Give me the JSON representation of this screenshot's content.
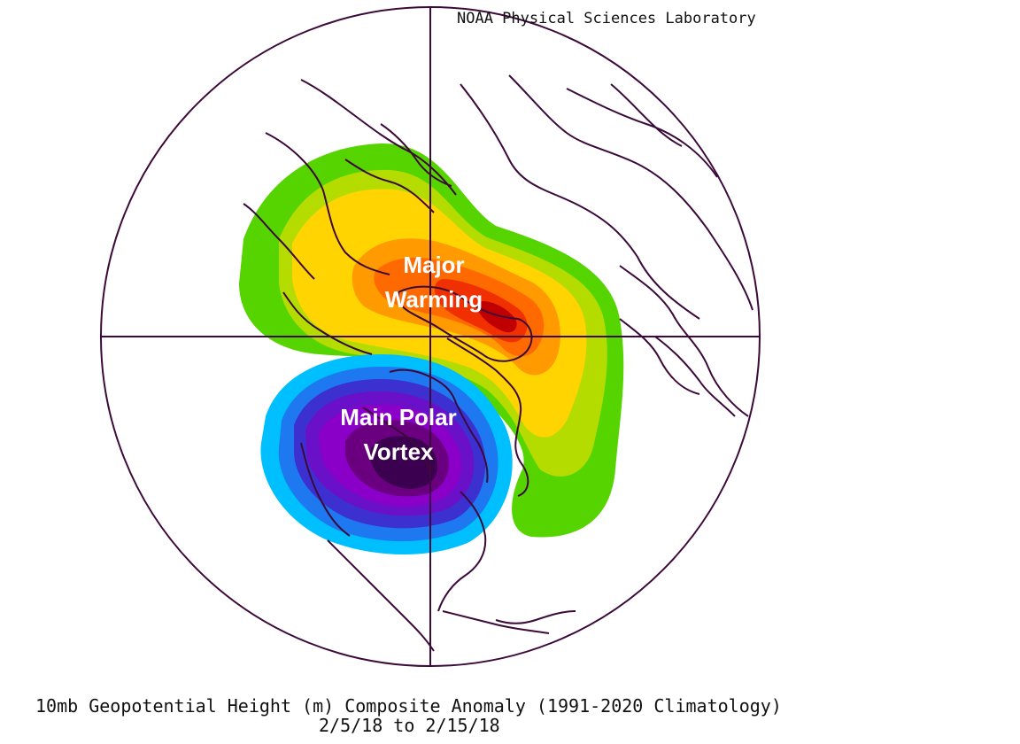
{
  "credit": "NOAA Physical Sciences Laboratory",
  "caption": {
    "line1": "10mb Geopotential Height (m) Composite Anomaly (1991-2020 Climatology)",
    "line2": "2/5/18  to 2/15/18"
  },
  "annotations": {
    "warming": [
      "Major",
      "Warming"
    ],
    "vortex": [
      "Main Polar",
      "Vortex"
    ]
  },
  "colors": {
    "outline": "#3b0a3a",
    "positive": [
      "#55d400",
      "#b4dc00",
      "#ffd400",
      "#ff9a00",
      "#ff6a00",
      "#f03000",
      "#c00000"
    ],
    "negative": [
      "#00bfff",
      "#1e78f0",
      "#3c30d0",
      "#6a10c8",
      "#8a00c8",
      "#6a0080",
      "#3c0050"
    ]
  }
}
